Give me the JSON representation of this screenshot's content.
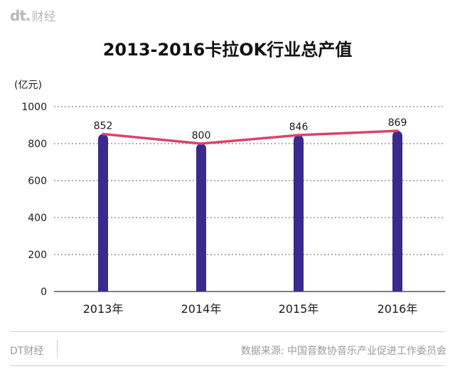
{
  "brand": {
    "logo": "dt.",
    "name": "财经"
  },
  "footer": {
    "left": "DT财经",
    "source": "数据来源: 中国音数协音乐产业促进工作委员会"
  },
  "colors": {
    "bar": "#3a2a8e",
    "line": "#d8446a",
    "grid": "#666666",
    "axis": "#333333"
  },
  "chart_data": {
    "type": "bar",
    "title": "2013-2016卡拉OK行业总产值",
    "ylabel": "(亿元)",
    "xlabel": "",
    "categories": [
      "2013年",
      "2014年",
      "2015年",
      "2016年"
    ],
    "values": [
      852,
      800,
      846,
      869
    ],
    "data_labels": [
      "852",
      "800",
      "846",
      "869"
    ],
    "ylim": [
      0,
      1000
    ],
    "yticks": [
      0,
      200,
      400,
      600,
      800,
      1000
    ],
    "ytick_labels": [
      "0",
      "200",
      "400",
      "600",
      "800",
      "1000"
    ],
    "grid": true,
    "overlay_line": true
  }
}
